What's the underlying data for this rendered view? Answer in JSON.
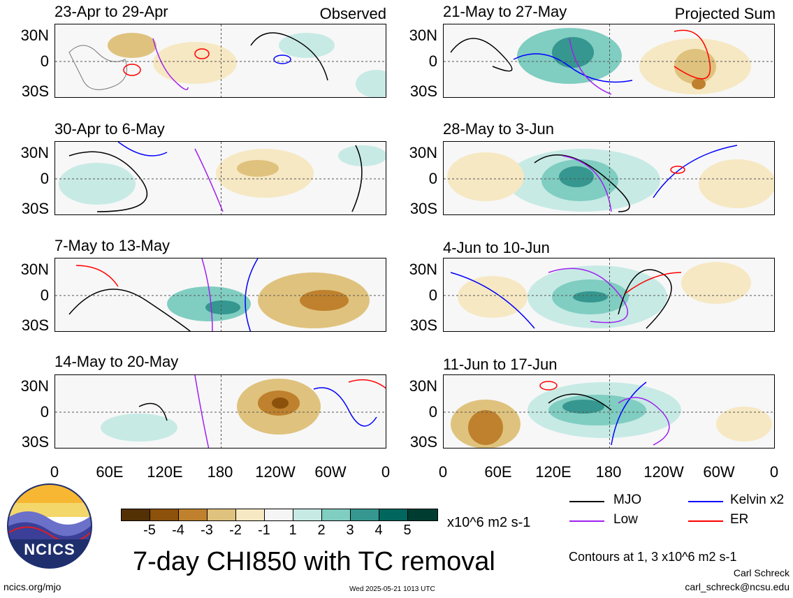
{
  "panels": [
    {
      "title": "23-Apr to 29-Apr",
      "tag": "Observed"
    },
    {
      "title": "30-Apr to 6-May",
      "tag": ""
    },
    {
      "title": "7-May to 13-May",
      "tag": ""
    },
    {
      "title": "14-May to 20-May",
      "tag": ""
    },
    {
      "title": "21-May to 27-May",
      "tag": "Projected Sum"
    },
    {
      "title": "28-May to 3-Jun",
      "tag": ""
    },
    {
      "title": "4-Jun to 10-Jun",
      "tag": ""
    },
    {
      "title": "11-Jun to 17-Jun",
      "tag": ""
    }
  ],
  "lat_labels": [
    "30N",
    "0",
    "30S"
  ],
  "lon_labels": [
    "0",
    "60E",
    "120E",
    "180",
    "120W",
    "60W",
    "0"
  ],
  "colorbar": {
    "colors": [
      "#543005",
      "#8c510a",
      "#bf812d",
      "#dfc27d",
      "#f6e8c3",
      "#f5f5f5",
      "#c7eae5",
      "#80cdc1",
      "#35978f",
      "#01665e",
      "#003c30"
    ],
    "labels": [
      "-5",
      "-4",
      "-3",
      "-2",
      "-1",
      "1",
      "2",
      "3",
      "4",
      "5"
    ],
    "units": "x10^6 m2 s-1"
  },
  "legend": {
    "mjo": {
      "label": "MJO",
      "color": "#000000"
    },
    "kelvin": {
      "label": "Kelvin x2",
      "color": "#0000ff"
    },
    "low": {
      "label": "Low",
      "color": "#a020f0"
    },
    "er": {
      "label": "ER",
      "color": "#ff0000"
    }
  },
  "logo_text": "NCICS",
  "main_title": "7-day CHI850 with TC removal",
  "contours_note": "Contours at 1, 3 x10^6 m2 s-1",
  "author": "Carl Schreck",
  "email": "carl_schreck@ncsu.edu",
  "site": "ncics.org/mjo",
  "timestamp": "Wed 2025-05-21 1013 UTC"
}
